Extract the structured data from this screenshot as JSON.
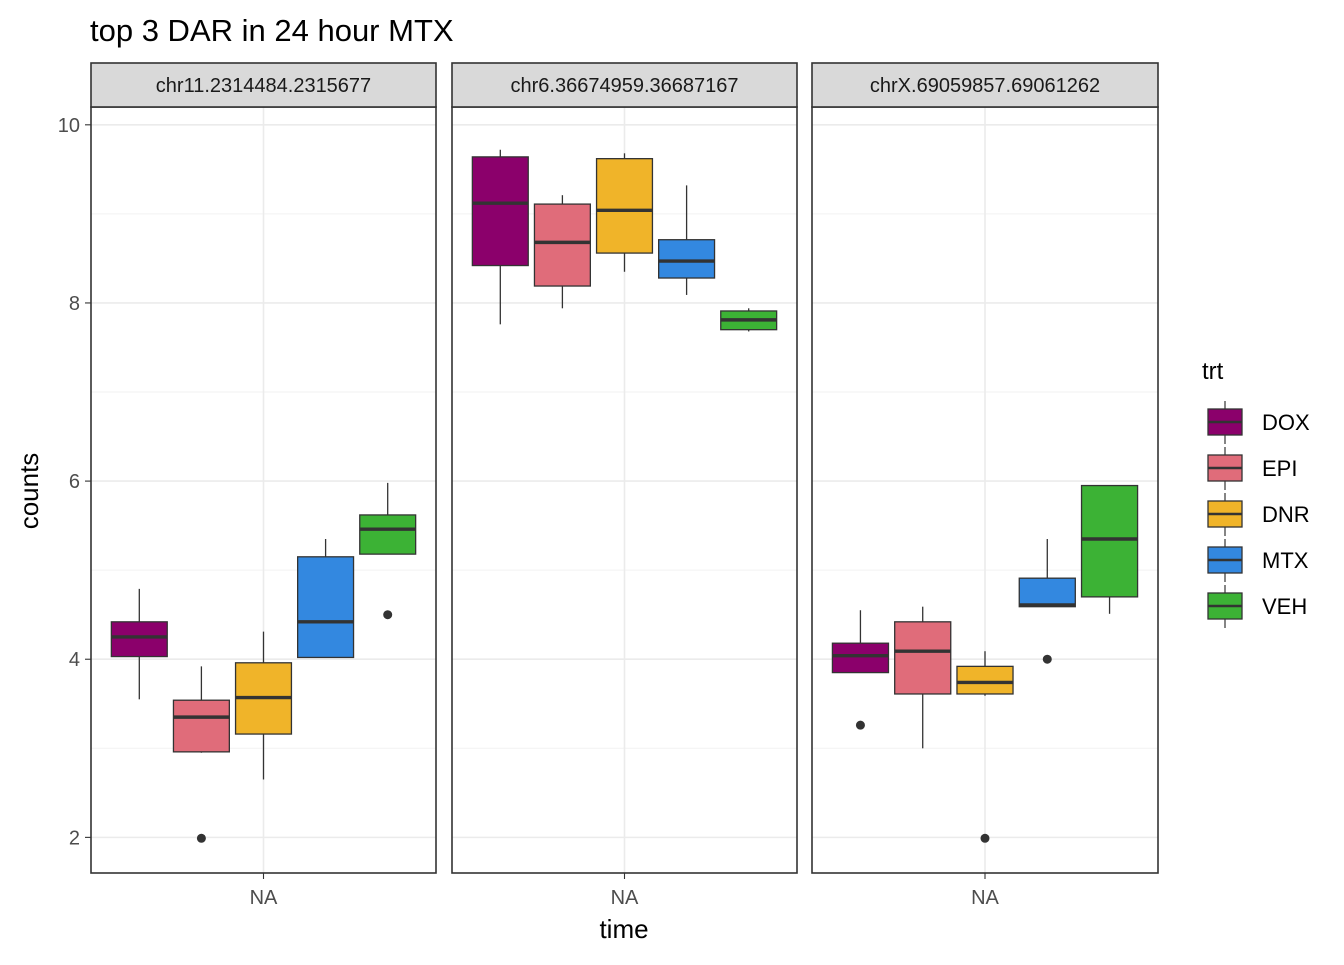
{
  "chart_data": {
    "type": "box",
    "title": "top 3 DAR in 24 hour MTX",
    "xlabel": "time",
    "ylabel": "counts",
    "ylim": [
      1.6,
      10.2
    ],
    "yticks": [
      2,
      4,
      6,
      8,
      10
    ],
    "x_category": "NA",
    "grid": true,
    "legend": {
      "title": "trt",
      "position": "right",
      "entries": [
        {
          "name": "DOX",
          "color": "#8B006B"
        },
        {
          "name": "EPI",
          "color": "#E06C7A"
        },
        {
          "name": "DNR",
          "color": "#F0B429"
        },
        {
          "name": "MTX",
          "color": "#3388E0"
        },
        {
          "name": "VEH",
          "color": "#3CB235"
        }
      ]
    },
    "facets": [
      {
        "label": "chr11.2314484.2315677",
        "boxes": [
          {
            "trt": "DOX",
            "low": 3.55,
            "q1": 4.03,
            "median": 4.25,
            "q3": 4.42,
            "high": 4.79,
            "outliers": []
          },
          {
            "trt": "EPI",
            "low": 2.95,
            "q1": 2.96,
            "median": 3.35,
            "q3": 3.54,
            "high": 3.92,
            "outliers": [
              1.99
            ]
          },
          {
            "trt": "DNR",
            "low": 2.65,
            "q1": 3.16,
            "median": 3.57,
            "q3": 3.96,
            "high": 4.31,
            "outliers": []
          },
          {
            "trt": "MTX",
            "low": 4.02,
            "q1": 4.02,
            "median": 4.42,
            "q3": 5.15,
            "high": 5.35,
            "outliers": []
          },
          {
            "trt": "VEH",
            "low": 5.18,
            "q1": 5.18,
            "median": 5.46,
            "q3": 5.62,
            "high": 5.98,
            "outliers": [
              4.5
            ]
          }
        ]
      },
      {
        "label": "chr6.36674959.36687167",
        "boxes": [
          {
            "trt": "DOX",
            "low": 7.76,
            "q1": 8.42,
            "median": 9.12,
            "q3": 9.64,
            "high": 9.72,
            "outliers": []
          },
          {
            "trt": "EPI",
            "low": 7.94,
            "q1": 8.19,
            "median": 8.68,
            "q3": 9.11,
            "high": 9.21,
            "outliers": []
          },
          {
            "trt": "DNR",
            "low": 8.35,
            "q1": 8.56,
            "median": 9.04,
            "q3": 9.62,
            "high": 9.68,
            "outliers": []
          },
          {
            "trt": "MTX",
            "low": 8.09,
            "q1": 8.28,
            "median": 8.47,
            "q3": 8.71,
            "high": 9.32,
            "outliers": []
          },
          {
            "trt": "VEH",
            "low": 7.68,
            "q1": 7.7,
            "median": 7.81,
            "q3": 7.91,
            "high": 7.94,
            "outliers": []
          }
        ]
      },
      {
        "label": "chrX.69059857.69061262",
        "boxes": [
          {
            "trt": "DOX",
            "low": 3.85,
            "q1": 3.85,
            "median": 4.04,
            "q3": 4.18,
            "high": 4.55,
            "outliers": [
              3.26
            ]
          },
          {
            "trt": "EPI",
            "low": 3.0,
            "q1": 3.61,
            "median": 4.09,
            "q3": 4.42,
            "high": 4.59,
            "outliers": []
          },
          {
            "trt": "DNR",
            "low": 3.59,
            "q1": 3.61,
            "median": 3.74,
            "q3": 3.92,
            "high": 4.09,
            "outliers": [
              1.99
            ]
          },
          {
            "trt": "MTX",
            "low": 4.59,
            "q1": 4.59,
            "median": 4.61,
            "q3": 4.91,
            "high": 5.35,
            "outliers": [
              4.0
            ]
          },
          {
            "trt": "VEH",
            "low": 4.51,
            "q1": 4.7,
            "median": 5.35,
            "q3": 5.95,
            "high": 5.95,
            "outliers": []
          }
        ]
      }
    ]
  }
}
